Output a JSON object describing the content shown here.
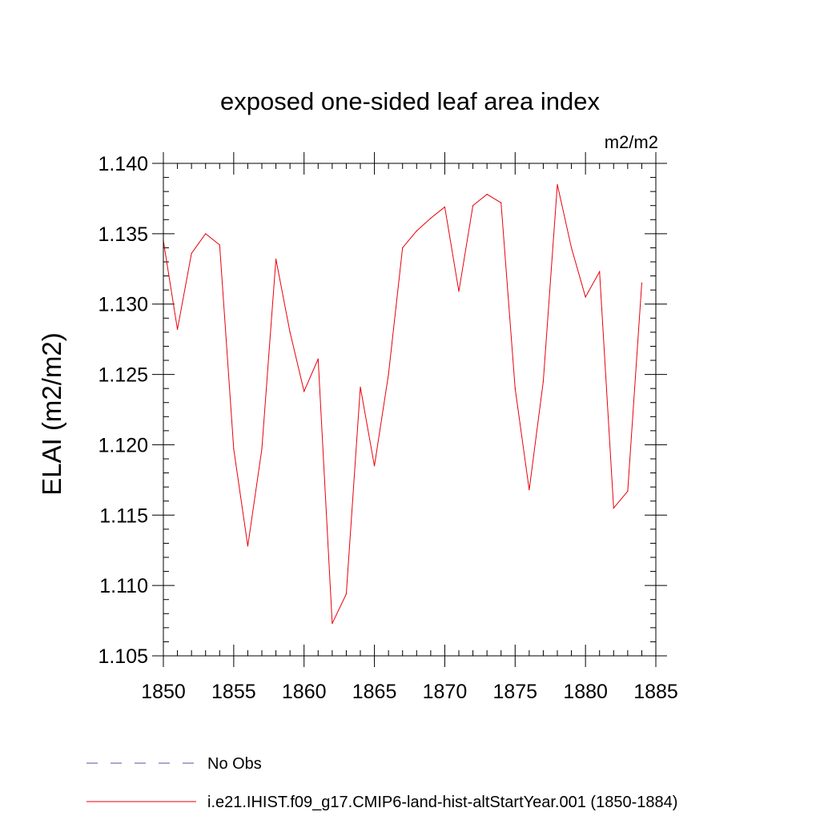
{
  "chart_data": {
    "type": "line",
    "title": "exposed one-sided leaf area index",
    "units_label": "m2/m2",
    "ylabel": "ELAI  (m2/m2)",
    "xlabel": "",
    "xlim": [
      1850,
      1885
    ],
    "ylim": [
      1.105,
      1.14
    ],
    "x_ticks": [
      1850,
      1855,
      1860,
      1865,
      1870,
      1875,
      1880,
      1885
    ],
    "x_tick_labels": [
      "1850",
      "1855",
      "1860",
      "1865",
      "1870",
      "1875",
      "1880",
      "1885"
    ],
    "y_ticks": [
      1.105,
      1.11,
      1.115,
      1.12,
      1.125,
      1.13,
      1.135,
      1.14
    ],
    "y_tick_labels": [
      "1.105",
      "1.110",
      "1.115",
      "1.120",
      "1.125",
      "1.130",
      "1.135",
      "1.140"
    ],
    "x_minor_step": 1,
    "y_minor_step": 0.001,
    "grid": false,
    "legend_position": "bottom-left",
    "series": [
      {
        "name": "i.e21.IHIST.f09_g17.CMIP6-land-hist-altStartYear.001 (1850-1884)",
        "color": "#e8000b",
        "dash": "solid",
        "x": [
          1850,
          1851,
          1852,
          1853,
          1854,
          1855,
          1856,
          1857,
          1858,
          1859,
          1860,
          1861,
          1862,
          1863,
          1864,
          1865,
          1866,
          1867,
          1868,
          1869,
          1870,
          1871,
          1872,
          1873,
          1874,
          1875,
          1876,
          1877,
          1878,
          1879,
          1880,
          1881,
          1882,
          1883,
          1884
        ],
        "values": [
          1.1345,
          1.1282,
          1.1336,
          1.135,
          1.1342,
          1.1197,
          1.1128,
          1.1197,
          1.1332,
          1.128,
          1.1238,
          1.1261,
          1.1073,
          1.1094,
          1.1241,
          1.1185,
          1.125,
          1.134,
          1.1352,
          1.1361,
          1.1369,
          1.1309,
          1.137,
          1.1378,
          1.1372,
          1.124,
          1.1168,
          1.1245,
          1.1385,
          1.134,
          1.1305,
          1.1323,
          1.1155,
          1.1167,
          1.1315
        ]
      }
    ],
    "legend": [
      {
        "label": "No Obs",
        "color": "#5b4fa8",
        "dash": "dashed"
      },
      {
        "label": "i.e21.IHIST.f09_g17.CMIP6-land-hist-altStartYear.001 (1850-1884)",
        "color": "#e8000b",
        "dash": "solid"
      }
    ]
  }
}
